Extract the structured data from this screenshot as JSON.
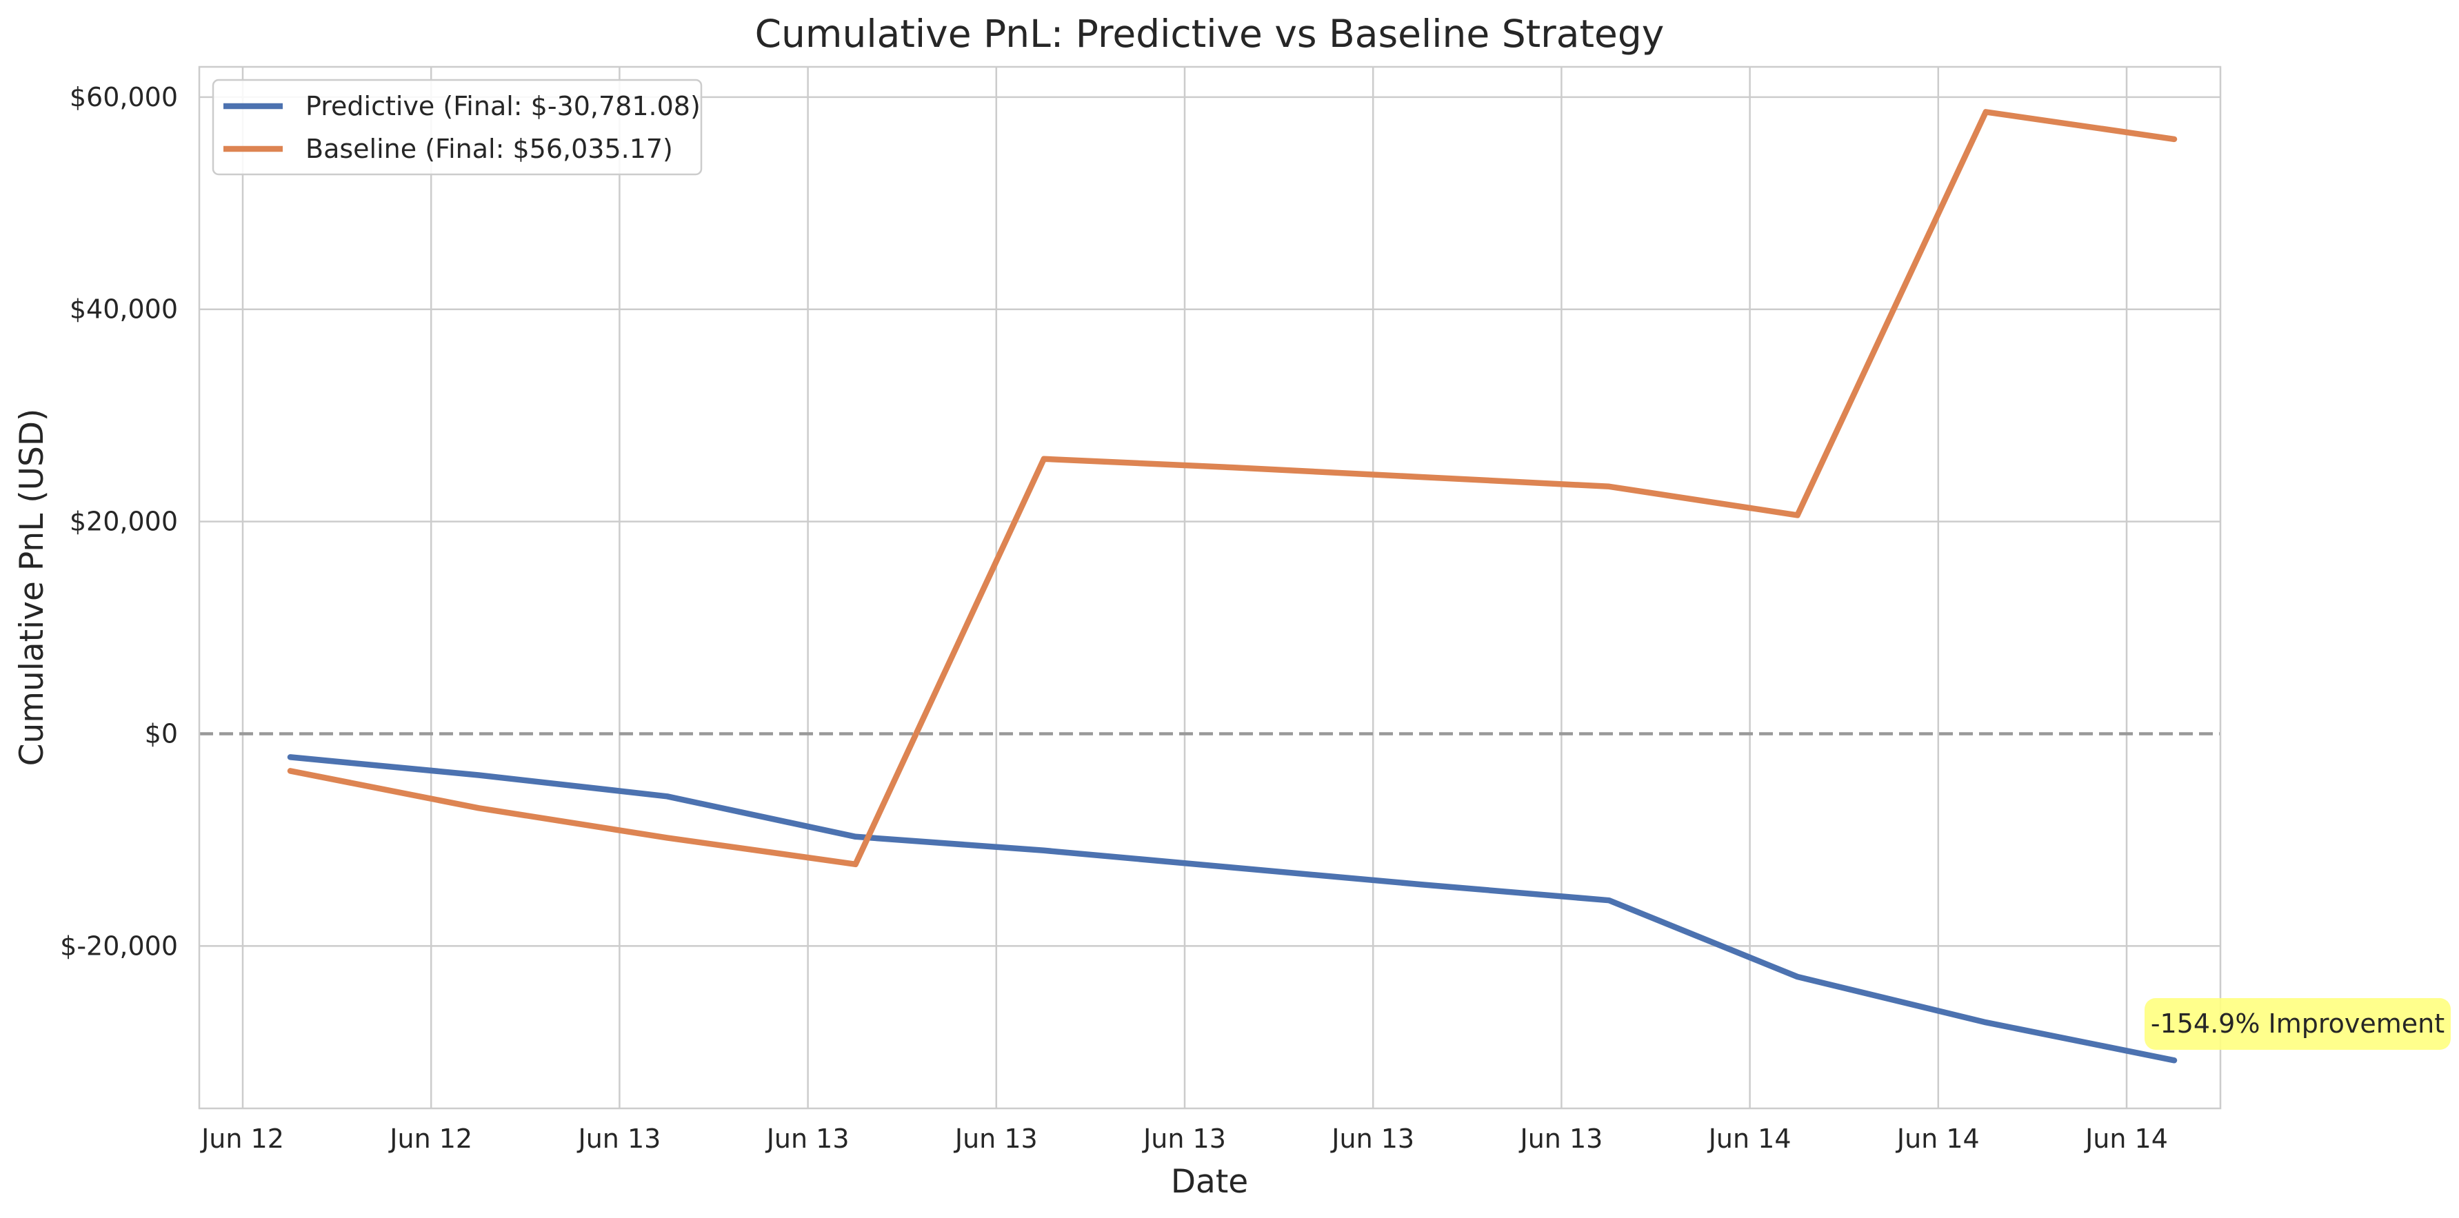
{
  "chart_data": {
    "type": "line",
    "title": "Cumulative PnL: Predictive vs Baseline Strategy",
    "xlabel": "Date",
    "ylabel": "Cumulative PnL (USD)",
    "x_tick_labels": [
      "Jun 12",
      "Jun 12",
      "Jun 13",
      "Jun 13",
      "Jun 13",
      "Jun 13",
      "Jun 13",
      "Jun 13",
      "Jun 14",
      "Jun 14",
      "Jun 14"
    ],
    "y_ticks": [
      {
        "value": -20000,
        "label": "$-20,000"
      },
      {
        "value": 0,
        "label": "$0"
      },
      {
        "value": 20000,
        "label": "$20,000"
      },
      {
        "value": 40000,
        "label": "$40,000"
      },
      {
        "value": 60000,
        "label": "$60,000"
      }
    ],
    "ylim": [
      -35000,
      63000
    ],
    "grid": true,
    "legend_position": "top-left",
    "reference_line": {
      "y": 0,
      "style": "dashed",
      "color": "#999999"
    },
    "series": [
      {
        "name": "Predictive (Final: $-30,781.08)",
        "color": "#4c72b0",
        "values": [
          -2200,
          -3900,
          -5900,
          -9700,
          -11000,
          -12600,
          -14200,
          -15700,
          -22900,
          -27200,
          -30781.08
        ]
      },
      {
        "name": "Baseline (Final: $56,035.17)",
        "color": "#dd8452",
        "values": [
          -3500,
          -7000,
          -9800,
          -12300,
          25900,
          25100,
          24200,
          23300,
          20600,
          58600,
          56035.17
        ]
      }
    ],
    "annotation": {
      "text": "-154.9% Improvement",
      "background": "#ffff80"
    }
  }
}
